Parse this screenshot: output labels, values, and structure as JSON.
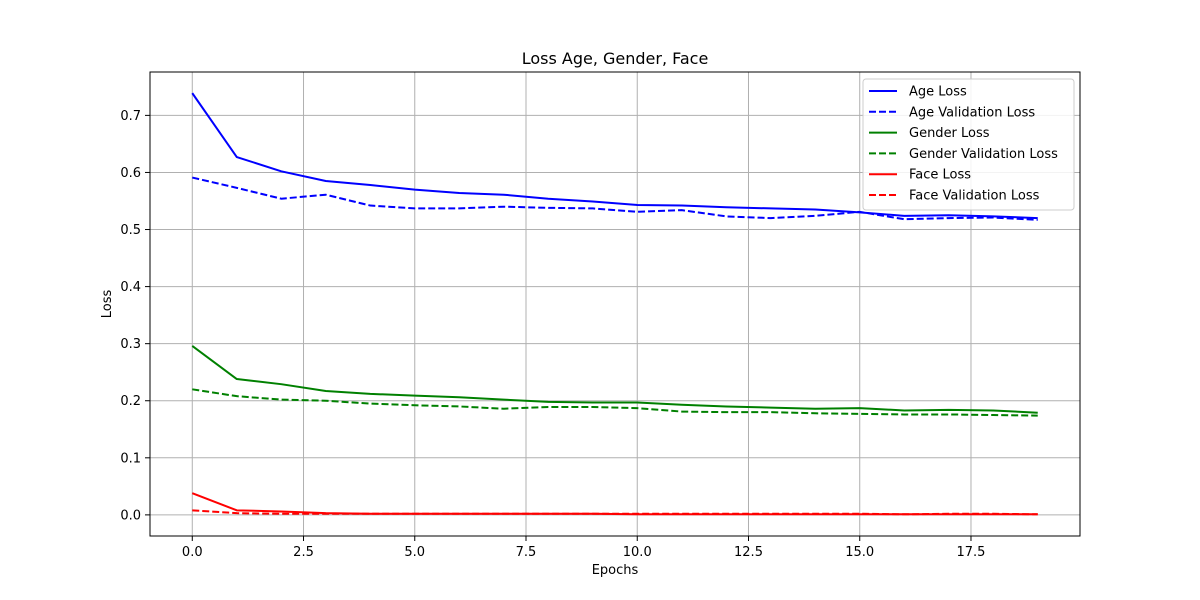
{
  "chart_data": {
    "type": "line",
    "title": "Loss Age, Gender, Face",
    "xlabel": "Epochs",
    "ylabel": "Loss",
    "xlim": [
      -0.95,
      19.95
    ],
    "ylim": [
      -0.037,
      0.776
    ],
    "xticks": [
      0,
      2.5,
      5,
      7.5,
      10,
      12.5,
      15,
      17.5
    ],
    "xtick_labels": [
      "0.0",
      "2.5",
      "5.0",
      "7.5",
      "10.0",
      "12.5",
      "15.0",
      "17.5"
    ],
    "yticks": [
      0,
      0.1,
      0.2,
      0.3,
      0.4,
      0.5,
      0.6,
      0.7
    ],
    "ytick_labels": [
      "0.0",
      "0.1",
      "0.2",
      "0.3",
      "0.4",
      "0.5",
      "0.6",
      "0.7"
    ],
    "grid": true,
    "legend_position": "top-right",
    "x": [
      0,
      1,
      2,
      3,
      4,
      5,
      6,
      7,
      8,
      9,
      10,
      11,
      12,
      13,
      14,
      15,
      16,
      17,
      18,
      19
    ],
    "series": [
      {
        "name": "Age Loss",
        "color": "#0000ff",
        "dash": "solid",
        "values": [
          0.739,
          0.627,
          0.602,
          0.585,
          0.578,
          0.57,
          0.564,
          0.561,
          0.554,
          0.549,
          0.543,
          0.542,
          0.539,
          0.537,
          0.535,
          0.53,
          0.524,
          0.525,
          0.523,
          0.52
        ]
      },
      {
        "name": "Age Validation Loss",
        "color": "#0000ff",
        "dash": "dashed",
        "values": [
          0.591,
          0.573,
          0.554,
          0.561,
          0.542,
          0.537,
          0.537,
          0.54,
          0.538,
          0.537,
          0.531,
          0.534,
          0.523,
          0.52,
          0.524,
          0.531,
          0.518,
          0.52,
          0.521,
          0.517
        ]
      },
      {
        "name": "Gender Loss",
        "color": "#008000",
        "dash": "solid",
        "values": [
          0.296,
          0.238,
          0.229,
          0.217,
          0.212,
          0.209,
          0.206,
          0.202,
          0.198,
          0.197,
          0.197,
          0.193,
          0.19,
          0.188,
          0.186,
          0.187,
          0.183,
          0.184,
          0.183,
          0.179
        ]
      },
      {
        "name": "Gender Validation Loss",
        "color": "#008000",
        "dash": "dashed",
        "values": [
          0.22,
          0.208,
          0.202,
          0.2,
          0.195,
          0.192,
          0.19,
          0.186,
          0.189,
          0.189,
          0.187,
          0.181,
          0.18,
          0.18,
          0.178,
          0.177,
          0.176,
          0.176,
          0.175,
          0.174
        ]
      },
      {
        "name": "Face Loss",
        "color": "#ff0000",
        "dash": "solid",
        "values": [
          0.038,
          0.008,
          0.006,
          0.003,
          0.002,
          0.002,
          0.002,
          0.002,
          0.002,
          0.002,
          0.001,
          0.001,
          0.001,
          0.001,
          0.001,
          0.001,
          0.001,
          0.001,
          0.001,
          0.001
        ]
      },
      {
        "name": "Face Validation Loss",
        "color": "#ff0000",
        "dash": "dashed",
        "values": [
          0.008,
          0.003,
          0.002,
          0.002,
          0.002,
          0.002,
          0.002,
          0.002,
          0.002,
          0.002,
          0.002,
          0.002,
          0.002,
          0.002,
          0.002,
          0.002,
          0.001,
          0.002,
          0.002,
          0.001
        ]
      }
    ]
  }
}
